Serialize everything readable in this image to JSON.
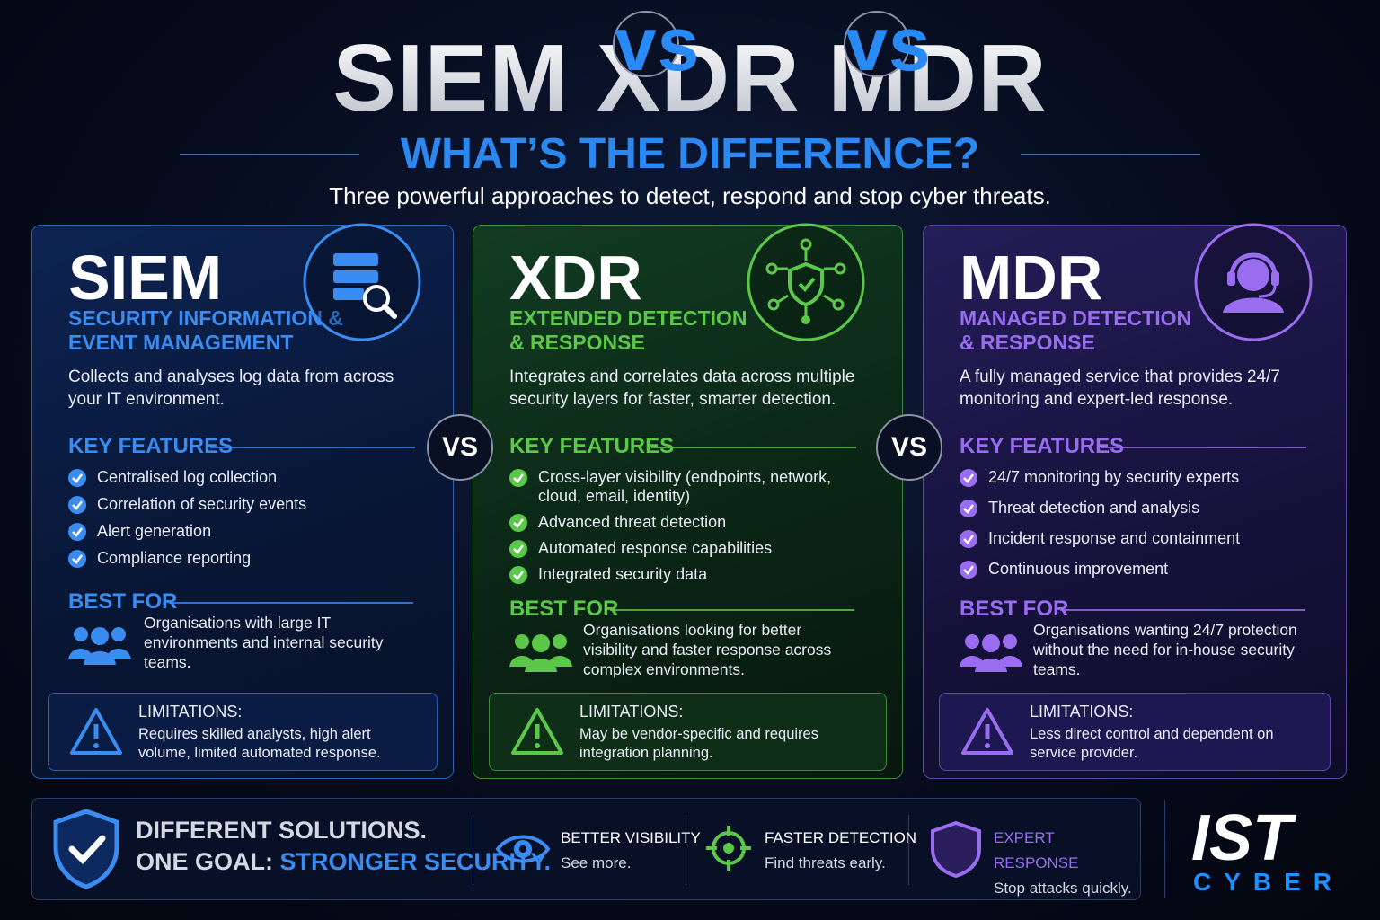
{
  "header": {
    "title": [
      "SIEM",
      "vs",
      "XDR",
      "vs",
      "MDR"
    ],
    "subtitle": "WHAT’S THE DIFFERENCE?",
    "tagline": "Three powerful approaches to detect, respond and stop cyber threats."
  },
  "columns": [
    {
      "name": "SIEM",
      "full_name": [
        "SECURITY INFORMATION &",
        "EVENT MANAGEMENT"
      ],
      "description": "Collects and analyses log data from across your IT environment.",
      "key_features_heading": "KEY FEATURES",
      "features": [
        "Centralised log collection",
        "Correlation of security events",
        "Alert generation",
        "Compliance reporting"
      ],
      "best_for_heading": "BEST FOR",
      "best_for": "Organisations with large IT environments and internal security teams.",
      "limitations_heading": "LIMITATIONS:",
      "limitations": "Requires skilled analysts, high alert volume, limited automated response."
    },
    {
      "name": "XDR",
      "full_name": [
        "EXTENDED DETECTION",
        "& RESPONSE"
      ],
      "description": "Integrates and correlates data across multiple security layers for faster, smarter detection.",
      "key_features_heading": "KEY FEATURES",
      "features": [
        "Cross-layer visibility (endpoints, network, cloud, email, identity)",
        "Advanced threat detection",
        "Automated response capabilities",
        "Integrated security data"
      ],
      "best_for_heading": "BEST FOR",
      "best_for": "Organisations looking for better visibility and faster response across complex environments.",
      "limitations_heading": "LIMITATIONS:",
      "limitations": "May be vendor-specific and requires integration planning."
    },
    {
      "name": "MDR",
      "full_name": [
        "MANAGED DETECTION",
        "& RESPONSE"
      ],
      "description": "A fully managed service that provides 24/7 monitoring and expert-led response.",
      "key_features_heading": "KEY FEATURES",
      "features": [
        "24/7 monitoring by security experts",
        "Threat detection and analysis",
        "Incident response and containment",
        "Continuous improvement"
      ],
      "best_for_heading": "BEST FOR",
      "best_for": "Organisations wanting 24/7 protection without the need for in-house security teams.",
      "limitations_heading": "LIMITATIONS:",
      "limitations": "Less direct control and dependent on service provider."
    }
  ],
  "vs_labels": [
    "VS",
    "VS"
  ],
  "footer": {
    "slogan_line1": "DIFFERENT SOLUTIONS.",
    "slogan_goal": "ONE GOAL:",
    "slogan_highlight": "STRONGER SECURITY.",
    "items": [
      {
        "title": "BETTER VISIBILITY",
        "text": "See more."
      },
      {
        "title": "FASTER DETECTION",
        "text": "Find threats early."
      },
      {
        "title": "EXPERT RESPONSE",
        "text": "Stop attacks quickly."
      }
    ],
    "logo_top": "IST",
    "logo_bottom": "CYBER"
  }
}
